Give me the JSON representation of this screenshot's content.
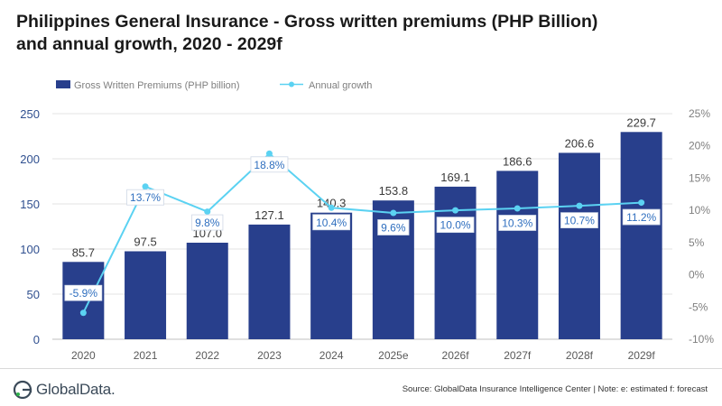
{
  "title": {
    "line1": "Philippines General Insurance - Gross written premiums (PHP Billion)",
    "line2": "and annual growth, 2020 - 2029f"
  },
  "chart_data": {
    "type": "bar+line",
    "categories": [
      "2020",
      "2021",
      "2022",
      "2023",
      "2024",
      "2025e",
      "2026f",
      "2027f",
      "2028f",
      "2029f"
    ],
    "series": [
      {
        "name": "Gross Written Premiums (PHP billion)",
        "type": "bar",
        "axis": "left",
        "color": "#283f8c",
        "values": [
          85.7,
          97.5,
          107.0,
          127.1,
          140.3,
          153.8,
          169.1,
          186.6,
          206.6,
          229.7
        ],
        "labels": [
          "85.7",
          "97.5",
          "107.0",
          "127.1",
          "140.3",
          "153.8",
          "169.1",
          "186.6",
          "206.6",
          "229.7"
        ]
      },
      {
        "name": "Annual growth",
        "type": "line",
        "axis": "right",
        "color": "#5bd2f2",
        "values": [
          -5.9,
          13.7,
          9.8,
          18.8,
          10.4,
          9.6,
          10.0,
          10.3,
          10.7,
          11.2
        ],
        "labels": [
          "-5.9%",
          "13.7%",
          "9.8%",
          "18.8%",
          "10.4%",
          "9.6%",
          "10.0%",
          "10.3%",
          "10.7%",
          "11.2%"
        ]
      }
    ],
    "y_left": {
      "min": 0,
      "max": 250,
      "ticks": [
        "0",
        "50",
        "100",
        "150",
        "200",
        "250"
      ]
    },
    "y_right": {
      "min": -10,
      "max": 25,
      "ticks": [
        "-10%",
        "-5%",
        "0%",
        "5%",
        "10%",
        "15%",
        "20%",
        "25%"
      ]
    },
    "grid": true,
    "legend_position": "top-left"
  },
  "footer": {
    "logo_text": "GlobalData.",
    "source": "Source: GlobalData Insurance Intelligence Center | Note: e: estimated f: forecast"
  }
}
